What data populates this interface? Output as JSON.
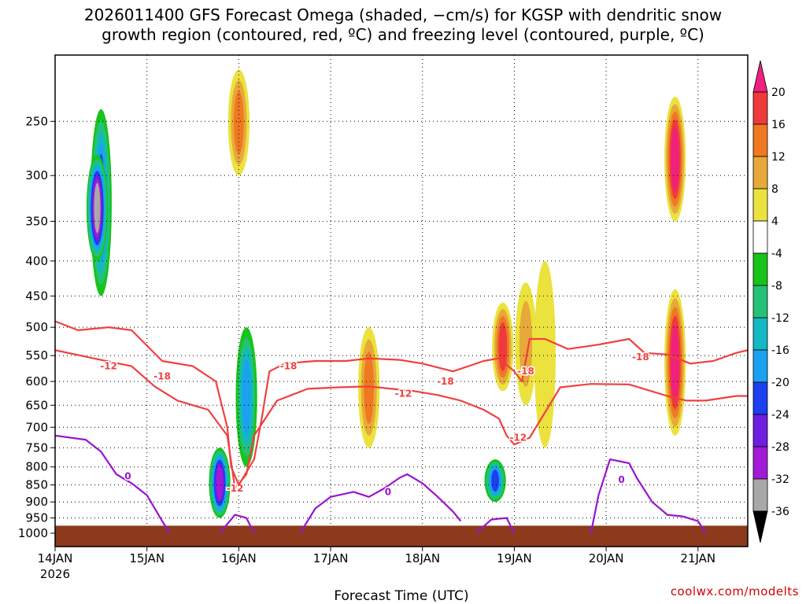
{
  "title": {
    "line1": "2026011400 GFS Forecast Omega (shaded, −cm/s) for KGSP with dendritic snow",
    "line2": "growth region (contoured, red, ºC) and freezing level (contoured, purple, ºC)"
  },
  "credit": "coolwx.com/modelts",
  "chart_data": {
    "type": "heatmap",
    "title": "2026011400 GFS Forecast Omega (shaded, −cm/s) for KGSP with dendritic snow growth region (contoured, red, ºC) and freezing level (contoured, purple, ºC)",
    "xlabel": "Forecast Time (UTC)",
    "ylabel": "",
    "x_range_hours": [
      0,
      181
    ],
    "y_range_hpa": [
      1000,
      200
    ],
    "x_ticks": [
      {
        "label": "14JAN",
        "hour": 0
      },
      {
        "label": "15JAN",
        "hour": 24
      },
      {
        "label": "16JAN",
        "hour": 48
      },
      {
        "label": "17JAN",
        "hour": 72
      },
      {
        "label": "18JAN",
        "hour": 96
      },
      {
        "label": "19JAN",
        "hour": 120
      },
      {
        "label": "20JAN",
        "hour": 144
      },
      {
        "label": "21JAN",
        "hour": 168
      }
    ],
    "x_year_label": "2026",
    "y_ticks": [
      250,
      300,
      350,
      400,
      450,
      500,
      550,
      600,
      650,
      700,
      750,
      800,
      850,
      900,
      950,
      1000
    ],
    "colorbar": {
      "unit": "-cm/s",
      "labels": [
        "20",
        "16",
        "12",
        "8",
        "4",
        "-4",
        "-8",
        "-12",
        "-16",
        "-20",
        "-24",
        "-28",
        "-32",
        "-36"
      ],
      "bins": [
        {
          "from": 20,
          "to": 24,
          "color": "#f0207d"
        },
        {
          "from": 16,
          "to": 20,
          "color": "#ee3a3a"
        },
        {
          "from": 12,
          "to": 16,
          "color": "#f07822"
        },
        {
          "from": 8,
          "to": 12,
          "color": "#e7a93a"
        },
        {
          "from": 4,
          "to": 8,
          "color": "#ebe23e"
        },
        {
          "from": -4,
          "to": 4,
          "color": "#ffffff"
        },
        {
          "from": -8,
          "to": -4,
          "color": "#17c41a"
        },
        {
          "from": -12,
          "to": -8,
          "color": "#23c277"
        },
        {
          "from": -16,
          "to": -12,
          "color": "#12b8c2"
        },
        {
          "from": -20,
          "to": -16,
          "color": "#1aa2f0"
        },
        {
          "from": -24,
          "to": -20,
          "color": "#1c3ff0"
        },
        {
          "from": -28,
          "to": -24,
          "color": "#6f1ee0"
        },
        {
          "from": -32,
          "to": -28,
          "color": "#a21ad6"
        },
        {
          "from": -36,
          "to": -32,
          "color": "#a8a8a8"
        },
        {
          "from": -40,
          "to": -36,
          "color": "#000000"
        }
      ]
    },
    "omega_features": [
      {
        "label": "strong ascent",
        "hour": 50,
        "p_top": 500,
        "p_bot": 800,
        "value": -20
      },
      {
        "label": "ascent column",
        "hour": 12,
        "p_top": 240,
        "p_bot": 450,
        "value": -24
      },
      {
        "label": "ascent core",
        "hour": 11,
        "p_top": 280,
        "p_bot": 400,
        "value": -36
      },
      {
        "label": "low-level ascent",
        "hour": 43,
        "p_top": 750,
        "p_bot": 950,
        "value": -32
      },
      {
        "label": "low-level ascent",
        "hour": 115,
        "p_top": 780,
        "p_bot": 900,
        "value": -24
      },
      {
        "label": "strong descent",
        "hour": 162,
        "p_top": 230,
        "p_bot": 350,
        "value": 24
      },
      {
        "label": "strong descent",
        "hour": 162,
        "p_top": 440,
        "p_bot": 720,
        "value": 24
      },
      {
        "label": "descent",
        "hour": 48,
        "p_top": 210,
        "p_bot": 300,
        "value": 16
      },
      {
        "label": "descent",
        "hour": 82,
        "p_top": 500,
        "p_bot": 750,
        "value": 16
      },
      {
        "label": "descent",
        "hour": 117,
        "p_top": 460,
        "p_bot": 620,
        "value": 18
      },
      {
        "label": "descent",
        "hour": 123,
        "p_top": 430,
        "p_bot": 650,
        "value": 12
      },
      {
        "label": "subsidence",
        "hour": 128,
        "p_top": 400,
        "p_bot": 750,
        "value": 6
      }
    ],
    "dendritic_contours": [
      {
        "name": "-12 C isotherm",
        "value": -12,
        "label_text": "-12",
        "labels": [
          {
            "hour": 14,
            "p": 570
          },
          {
            "hour": 47,
            "p": 860
          },
          {
            "hour": 91,
            "p": 625
          },
          {
            "hour": 121,
            "p": 725
          }
        ],
        "points": [
          [
            0,
            540
          ],
          [
            10,
            555
          ],
          [
            20,
            570
          ],
          [
            26,
            610
          ],
          [
            32,
            640
          ],
          [
            40,
            660
          ],
          [
            45,
            720
          ],
          [
            47,
            860
          ],
          [
            50,
            820
          ],
          [
            52,
            720
          ],
          [
            58,
            640
          ],
          [
            66,
            615
          ],
          [
            74,
            612
          ],
          [
            82,
            610
          ],
          [
            88,
            615
          ],
          [
            94,
            620
          ],
          [
            100,
            628
          ],
          [
            106,
            640
          ],
          [
            112,
            660
          ],
          [
            116,
            680
          ],
          [
            118,
            720
          ],
          [
            120,
            742
          ],
          [
            124,
            725
          ],
          [
            132,
            612
          ],
          [
            140,
            605
          ],
          [
            150,
            606
          ],
          [
            160,
            630
          ],
          [
            165,
            640
          ],
          [
            170,
            640
          ],
          [
            178,
            630
          ],
          [
            181,
            630
          ]
        ]
      },
      {
        "name": "-18 C isotherm",
        "value": -18,
        "label_text": "-18",
        "labels": [
          {
            "hour": 28,
            "p": 590
          },
          {
            "hour": 61,
            "p": 570
          },
          {
            "hour": 102,
            "p": 600
          },
          {
            "hour": 123,
            "p": 580
          },
          {
            "hour": 153,
            "p": 553
          }
        ],
        "points": [
          [
            0,
            490
          ],
          [
            6,
            505
          ],
          [
            14,
            500
          ],
          [
            20,
            505
          ],
          [
            28,
            560
          ],
          [
            36,
            570
          ],
          [
            42,
            600
          ],
          [
            45,
            700
          ],
          [
            46,
            800
          ],
          [
            48,
            850
          ],
          [
            52,
            780
          ],
          [
            54,
            680
          ],
          [
            56,
            580
          ],
          [
            60,
            565
          ],
          [
            68,
            560
          ],
          [
            76,
            560
          ],
          [
            82,
            555
          ],
          [
            90,
            558
          ],
          [
            96,
            565
          ],
          [
            104,
            580
          ],
          [
            112,
            560
          ],
          [
            116,
            555
          ],
          [
            120,
            580
          ],
          [
            122,
            600
          ],
          [
            124,
            520
          ],
          [
            128,
            520
          ],
          [
            134,
            538
          ],
          [
            142,
            530
          ],
          [
            150,
            520
          ],
          [
            154,
            545
          ],
          [
            160,
            548
          ],
          [
            166,
            565
          ],
          [
            172,
            560
          ],
          [
            178,
            545
          ],
          [
            181,
            540
          ]
        ]
      }
    ],
    "freezing_contours": [
      {
        "name": "0 C segment 1",
        "value": 0,
        "label_text": "0",
        "labels": [
          {
            "hour": 19,
            "p": 825
          }
        ],
        "points": [
          [
            0,
            720
          ],
          [
            8,
            730
          ],
          [
            12,
            760
          ],
          [
            16,
            820
          ],
          [
            20,
            845
          ],
          [
            24,
            880
          ],
          [
            28,
            960
          ],
          [
            30,
            1000
          ]
        ]
      },
      {
        "name": "0 C segment 2",
        "value": 0,
        "label_text": "0",
        "labels": [],
        "points": [
          [
            43,
            1000
          ],
          [
            47,
            940
          ],
          [
            50,
            950
          ],
          [
            52,
            1000
          ]
        ]
      },
      {
        "name": "0 C segment 3",
        "value": 0,
        "label_text": "0",
        "labels": [
          {
            "hour": 87,
            "p": 870
          }
        ],
        "points": [
          [
            64,
            1000
          ],
          [
            68,
            920
          ],
          [
            72,
            885
          ],
          [
            78,
            870
          ],
          [
            82,
            885
          ],
          [
            86,
            860
          ],
          [
            90,
            830
          ],
          [
            92,
            820
          ],
          [
            96,
            845
          ],
          [
            100,
            885
          ],
          [
            104,
            930
          ],
          [
            106,
            960
          ]
        ]
      },
      {
        "name": "0 C segment 4",
        "value": 0,
        "label_text": "0",
        "labels": [],
        "points": [
          [
            110,
            1000
          ],
          [
            114,
            955
          ],
          [
            118,
            950
          ],
          [
            120,
            1000
          ]
        ]
      },
      {
        "name": "0 C segment 5",
        "value": 0,
        "label_text": "0",
        "labels": [
          {
            "hour": 148,
            "p": 835
          }
        ],
        "points": [
          [
            140,
            1000
          ],
          [
            142,
            880
          ],
          [
            145,
            780
          ],
          [
            150,
            790
          ],
          [
            152,
            830
          ],
          [
            156,
            900
          ],
          [
            160,
            940
          ],
          [
            164,
            945
          ],
          [
            168,
            960
          ],
          [
            170,
            1000
          ]
        ]
      }
    ],
    "ground": {
      "label": "surface (terrain)",
      "p_from": 975,
      "color": "#8b3a1c"
    }
  }
}
